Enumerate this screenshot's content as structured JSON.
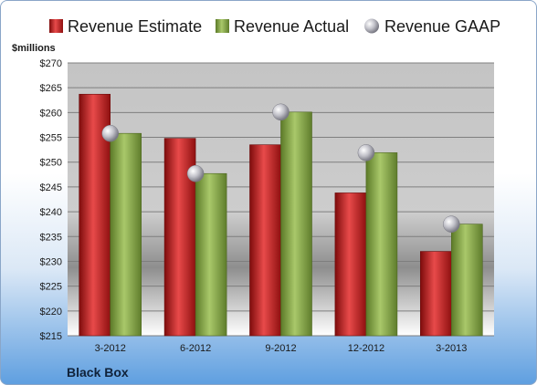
{
  "chart_data": {
    "type": "bar",
    "categories": [
      "3-2012",
      "6-2012",
      "9-2012",
      "12-2012",
      "3-2013"
    ],
    "series": [
      {
        "name": "Revenue Estimate",
        "values": [
          263.7,
          254.8,
          253.5,
          243.8,
          232.0
        ],
        "color": "#cc1f1f"
      },
      {
        "name": "Revenue Actual",
        "values": [
          255.8,
          247.7,
          260.1,
          251.9,
          237.5
        ],
        "color": "#8cae4a"
      }
    ],
    "points": {
      "name": "Revenue GAAP",
      "values": [
        255.8,
        247.7,
        260.1,
        251.9,
        237.5
      ],
      "color": "#b8b8c0"
    },
    "ylabel": "$millions",
    "ylim": [
      215,
      270
    ],
    "ytick_step": 5,
    "yticks": [
      "$215",
      "$220",
      "$225",
      "$230",
      "$235",
      "$240",
      "$245",
      "$250",
      "$255",
      "$260",
      "$265",
      "$270"
    ],
    "grid": true,
    "legend": "top"
  },
  "footer": {
    "company": "Black Box"
  }
}
